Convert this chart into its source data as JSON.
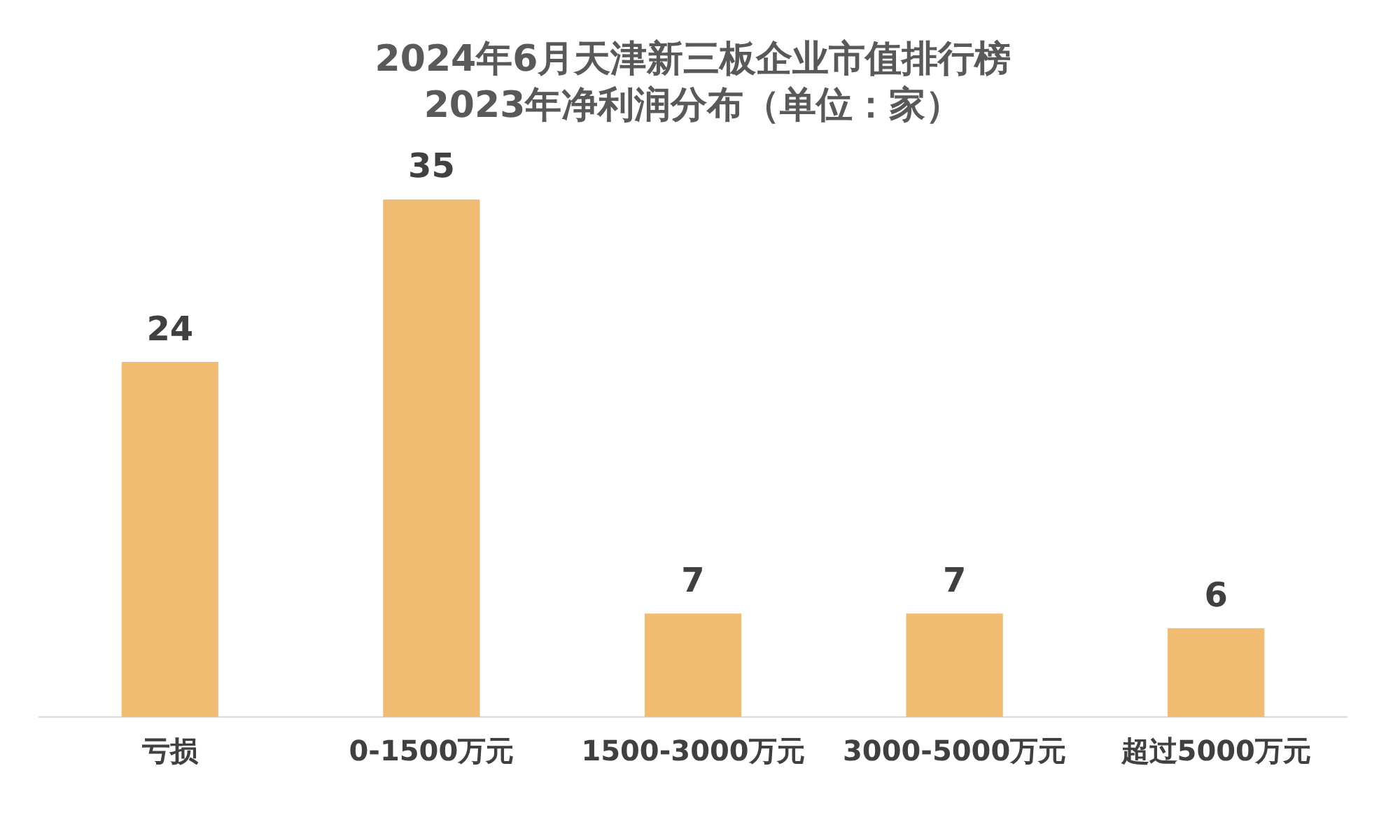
{
  "chart_data": {
    "type": "bar",
    "title": "2024年6月天津新三板企业市值排行榜",
    "subtitle": "2023年净利润分布（单位：家）",
    "categories": [
      "亏损",
      "0-1500万元",
      "1500-3000万元",
      "3000-5000万元",
      "超过5000万元"
    ],
    "values": [
      24,
      35,
      7,
      7,
      6
    ],
    "color": "#f0bc72",
    "data_labels": true,
    "grid": false,
    "legend": false
  }
}
